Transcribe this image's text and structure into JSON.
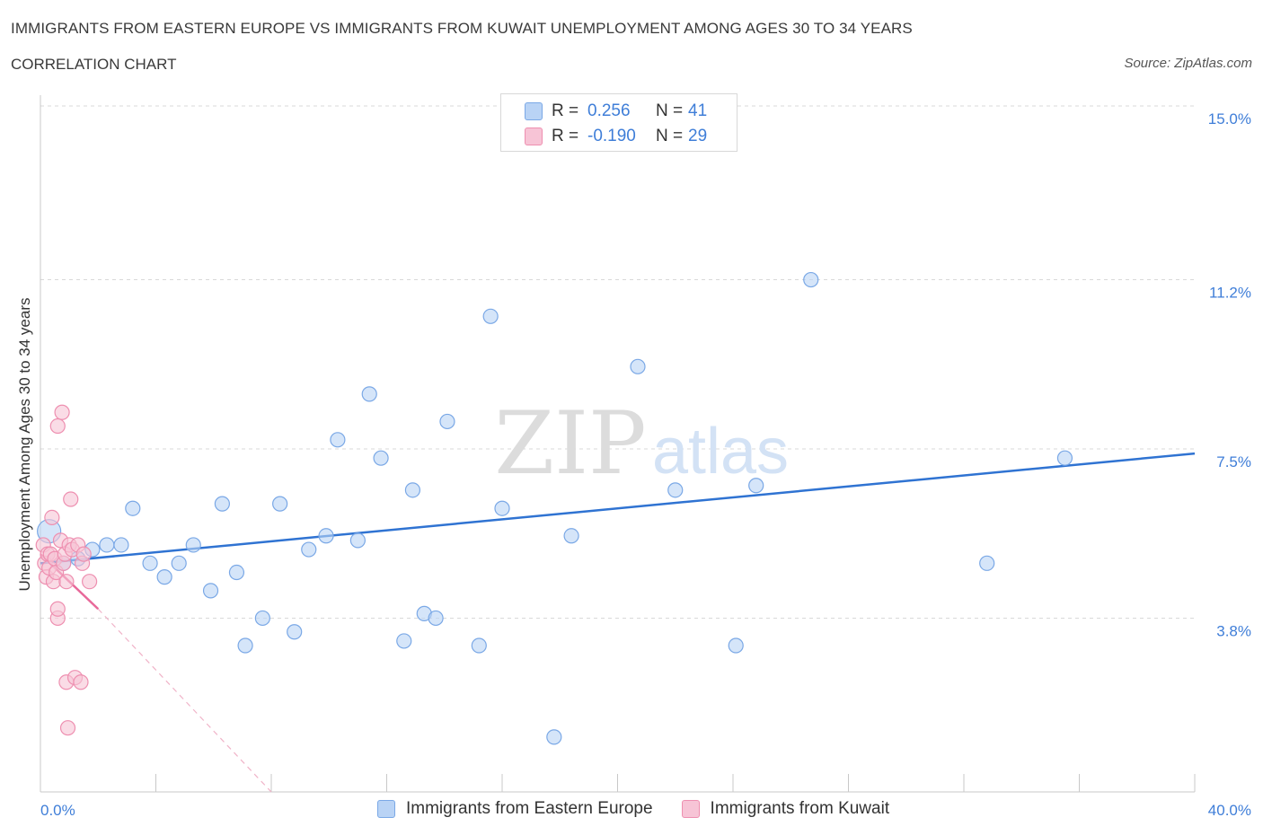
{
  "header": {
    "title": "IMMIGRANTS FROM EASTERN EUROPE VS IMMIGRANTS FROM KUWAIT UNEMPLOYMENT AMONG AGES 30 TO 34 YEARS",
    "subtitle": "CORRELATION CHART",
    "source": "Source: ZipAtlas.com"
  },
  "legend": {
    "series1": {
      "r_label": "R =",
      "r_value": "0.256",
      "n_label": "N =",
      "n_value": "41"
    },
    "series2": {
      "r_label": "R =",
      "r_value": "-0.190",
      "n_label": "N =",
      "n_value": "29"
    }
  },
  "colors": {
    "blue_fill": "#b9d3f5",
    "blue_stroke": "#7aa8e6",
    "blue_line": "#2f73d2",
    "pink_fill": "#f7c4d6",
    "pink_stroke": "#ee8fb0",
    "pink_line": "#e8699a",
    "grid": "#d9d9d9",
    "axis_text": "#3f7ed8"
  },
  "chart_data": {
    "type": "scatter",
    "title": "IMMIGRANTS FROM EASTERN EUROPE VS IMMIGRANTS FROM KUWAIT UNEMPLOYMENT AMONG AGES 30 TO 34 YEARS",
    "xlabel": "",
    "ylabel": "Unemployment Among Ages 30 to 34 years",
    "xlim": [
      0,
      40
    ],
    "ylim": [
      0,
      15
    ],
    "x_tick_labels": [
      "0.0%",
      "40.0%"
    ],
    "y_ticks": [
      3.8,
      7.5,
      11.2,
      15.0
    ],
    "y_tick_labels": [
      "3.8%",
      "7.5%",
      "11.2%",
      "15.0%"
    ],
    "watermark": {
      "zip": "ZIP",
      "atlas": "atlas"
    },
    "series": [
      {
        "name": "Immigrants from Eastern Europe",
        "color": "#7aa8e6",
        "points": [
          [
            0.3,
            5.7
          ],
          [
            0.8,
            5.0
          ],
          [
            1.3,
            5.1
          ],
          [
            1.8,
            5.3
          ],
          [
            2.3,
            5.4
          ],
          [
            2.8,
            5.4
          ],
          [
            3.2,
            6.2
          ],
          [
            3.8,
            5.0
          ],
          [
            4.3,
            4.7
          ],
          [
            4.8,
            5.0
          ],
          [
            5.3,
            5.4
          ],
          [
            5.9,
            4.4
          ],
          [
            6.3,
            6.3
          ],
          [
            6.8,
            4.8
          ],
          [
            7.1,
            3.2
          ],
          [
            7.7,
            3.8
          ],
          [
            8.3,
            6.3
          ],
          [
            8.8,
            3.5
          ],
          [
            9.3,
            5.3
          ],
          [
            9.9,
            5.6
          ],
          [
            10.3,
            7.7
          ],
          [
            11.0,
            5.5
          ],
          [
            11.4,
            8.7
          ],
          [
            11.8,
            7.3
          ],
          [
            12.6,
            3.3
          ],
          [
            12.9,
            6.6
          ],
          [
            13.3,
            3.9
          ],
          [
            13.7,
            3.8
          ],
          [
            14.1,
            8.1
          ],
          [
            15.2,
            3.2
          ],
          [
            15.6,
            10.4
          ],
          [
            16.0,
            6.2
          ],
          [
            17.8,
            1.2
          ],
          [
            18.4,
            5.6
          ],
          [
            20.7,
            9.3
          ],
          [
            22.0,
            6.6
          ],
          [
            24.1,
            3.2
          ],
          [
            24.8,
            6.7
          ],
          [
            26.7,
            11.2
          ],
          [
            32.8,
            5.0
          ],
          [
            35.5,
            7.3
          ]
        ],
        "trend": {
          "x": [
            0,
            40
          ],
          "y": [
            5.0,
            7.4
          ]
        }
      },
      {
        "name": "Immigrants from Kuwait",
        "color": "#ee8fb0",
        "points": [
          [
            0.1,
            5.4
          ],
          [
            0.15,
            5.0
          ],
          [
            0.2,
            4.7
          ],
          [
            0.25,
            5.2
          ],
          [
            0.3,
            4.9
          ],
          [
            0.35,
            5.2
          ],
          [
            0.4,
            6.0
          ],
          [
            0.45,
            4.6
          ],
          [
            0.5,
            5.1
          ],
          [
            0.55,
            4.8
          ],
          [
            0.6,
            3.8
          ],
          [
            0.6,
            4.0
          ],
          [
            0.6,
            8.0
          ],
          [
            0.7,
            5.5
          ],
          [
            0.75,
            8.3
          ],
          [
            0.8,
            5.0
          ],
          [
            0.85,
            5.2
          ],
          [
            0.9,
            4.6
          ],
          [
            0.9,
            2.4
          ],
          [
            0.95,
            1.4
          ],
          [
            1.0,
            5.4
          ],
          [
            1.05,
            6.4
          ],
          [
            1.1,
            5.3
          ],
          [
            1.2,
            2.5
          ],
          [
            1.3,
            5.4
          ],
          [
            1.4,
            2.4
          ],
          [
            1.45,
            5.0
          ],
          [
            1.5,
            5.2
          ],
          [
            1.7,
            4.6
          ]
        ],
        "trend_solid": {
          "x": [
            0,
            2.0
          ],
          "y": [
            5.2,
            4.0
          ]
        },
        "trend_dashed": {
          "x": [
            2.0,
            8.0
          ],
          "y": [
            4.0,
            0.0
          ]
        }
      }
    ]
  },
  "bottom_legend": {
    "items": [
      {
        "label": "Immigrants from Eastern Europe"
      },
      {
        "label": "Immigrants from Kuwait"
      }
    ]
  }
}
